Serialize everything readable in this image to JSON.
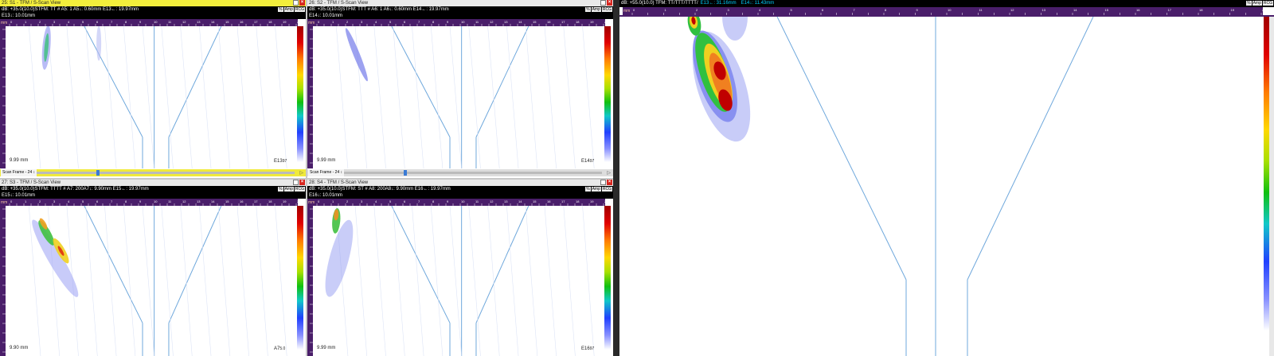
{
  "panels": [
    {
      "title": "25: S1 - TFM / S-Scan View",
      "active": true,
      "header_line1": "dB: +35.0(10.0)STFM: TT     # A5: 1   A5↓: 0.60mm   E13←: 19.97mm",
      "header_line2": "E13↓: 10.01mm",
      "badges": [
        "%",
        "Amp",
        "RCG"
      ],
      "depth_readout": "9.99 mm",
      "corner_label": "E13",
      "corner_value": "97",
      "scan_frame": "Scan Frame - 24",
      "slider_fraction": 0.23,
      "focus": "TT"
    },
    {
      "title": "26: S2 - TFM / S-Scan View",
      "active": false,
      "header_line1": "dB: +35.0(10.0)STFM: TTT     # A6: 1   A6↓: 0.60mm   E14←: 19.97mm",
      "header_line2": "E14↓: 10.01mm",
      "badges": [
        "%",
        "Amp",
        "RCG"
      ],
      "depth_readout": "9.99 mm",
      "corner_label": "E14",
      "corner_value": "97",
      "scan_frame": "Scan Frame - 24",
      "slider_fraction": 0.23,
      "focus": "TTT"
    },
    {
      "title": "27: S3 - TFM / S-Scan View",
      "active": false,
      "header_line1": "dB: +35.0(10.0)STFM: TTTT     # A7: 200A7↓: 9.90mm   E15←: 19.97mm",
      "header_line2": "E15↓: 10.01mm",
      "badges": [
        "%",
        "Amp",
        "RCG"
      ],
      "depth_readout": "9.90 mm",
      "corner_label": "A7",
      "corner_value": "5.0",
      "focus": "TTTT"
    },
    {
      "title": "28: S4 - TFM / S-Scan View",
      "active": false,
      "header_line1": "dB: +35.0(10.0)STFM: ST     # A8: 200A8↓: 9.90mm   E16←: 19.97mm",
      "header_line2": "E16↓: 10.01mm",
      "badges": [
        "%",
        "Amp",
        "RCG"
      ],
      "depth_readout": "9.99 mm",
      "corner_label": "E16",
      "corner_value": "97",
      "focus": "ST"
    }
  ],
  "large_view": {
    "header_prefix": "dB: +55.0(10.0)   TFM: TT/TTT/TTTT/",
    "header_e13": "E13←: 31.16mm",
    "header_e14": "E14↓: 11.43mm",
    "badges": [
      "%",
      "Amp",
      "RCG"
    ]
  },
  "ruler": {
    "unit": "mm",
    "ticks": [
      "0",
      "0.5",
      "1",
      "1.5",
      "2",
      "2.5",
      "3",
      "3.5",
      "4",
      "4.5",
      "5",
      "5.5",
      "6",
      "6.5",
      "7",
      "7.5",
      "8",
      "8.5",
      "9",
      "9.5",
      "10",
      "10.5",
      "11",
      "11.5",
      "12",
      "12.5",
      "13",
      "13.5",
      "14",
      "14.5",
      "15",
      "15.5",
      "16",
      "16.5",
      "17",
      "17.5",
      "18",
      "18.5",
      "19",
      "19.5",
      "20"
    ]
  },
  "colors": {
    "ruler": "#4a1e6a",
    "active_title": "#f3ee3c",
    "geometry_line": "#6fa8dc",
    "close_button": "#d8261f"
  }
}
